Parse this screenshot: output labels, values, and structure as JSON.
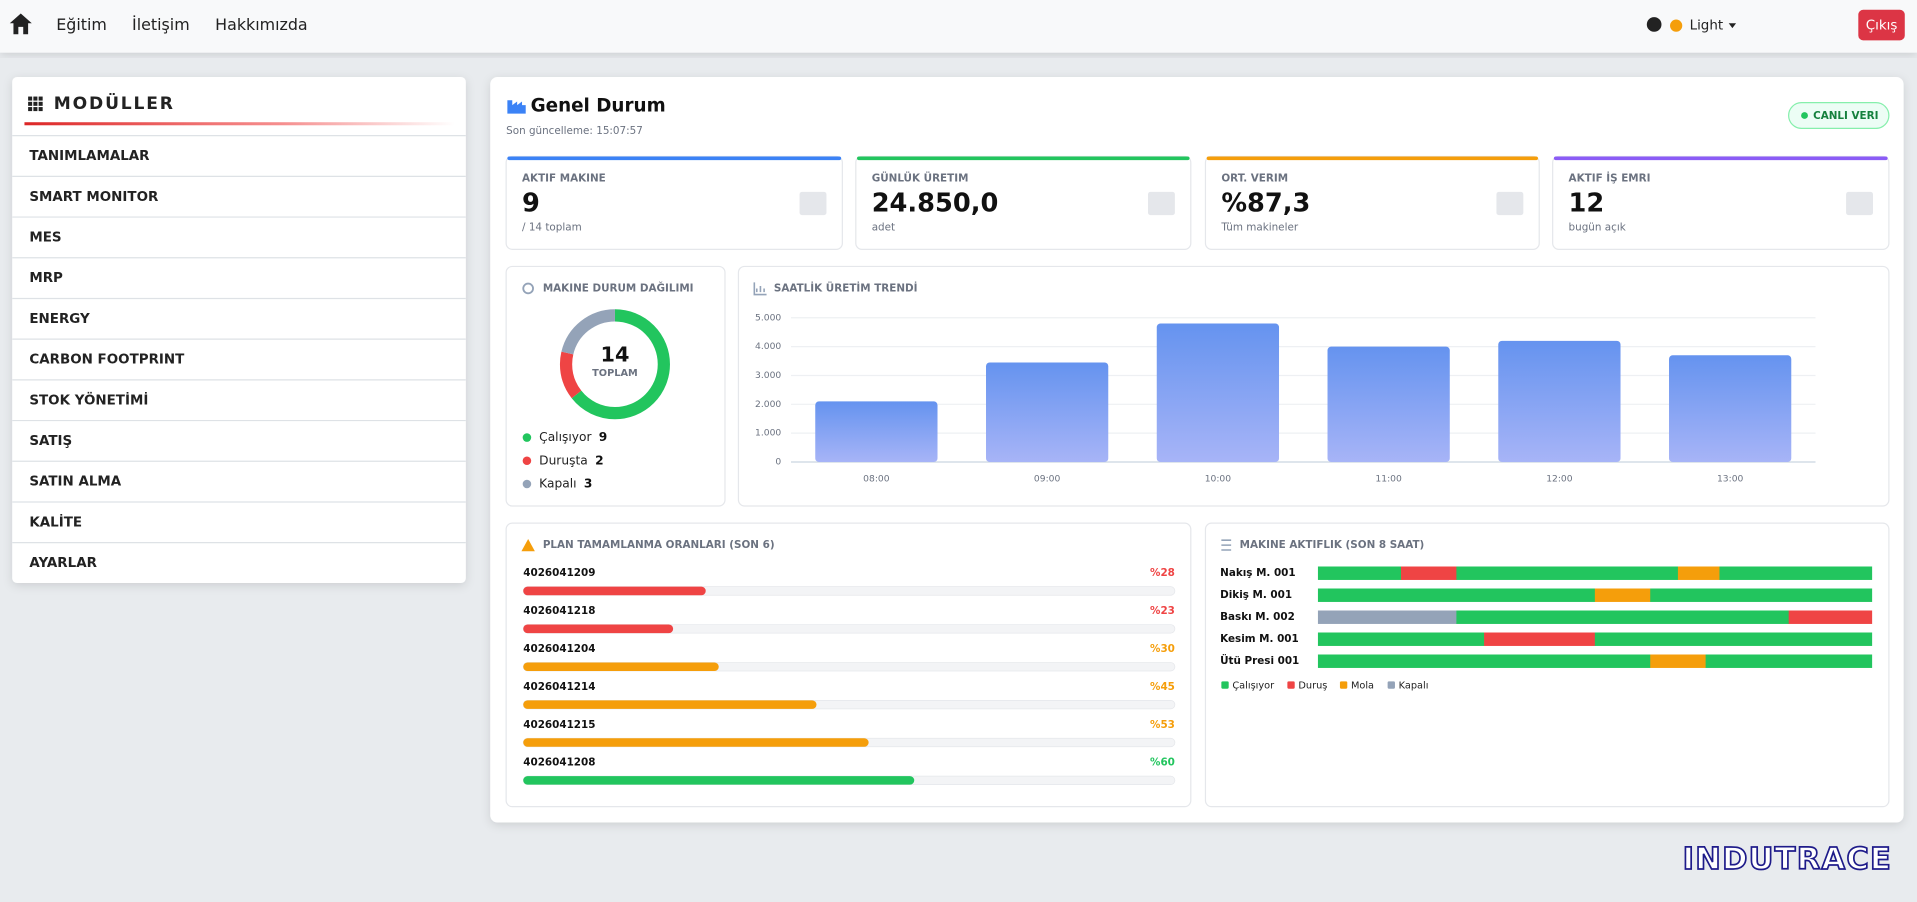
{
  "nav": {
    "links": [
      "Eğitim",
      "İletişim",
      "Hakkımızda"
    ],
    "theme": "Light",
    "logout": "Çıkış"
  },
  "sidebar": {
    "title": "MODÜLLER",
    "items": [
      "TANIMLAMALAR",
      "SMART MONITOR",
      "MES",
      "MRP",
      "ENERGY",
      "CARBON FOOTPRINT",
      "STOK YÖNETİMİ",
      "SATIŞ",
      "SATIN ALMA",
      "KALİTE",
      "AYARLAR"
    ]
  },
  "header": {
    "title": "Genel Durum",
    "updated": "Son güncelleme: 15:07:57",
    "badge": "CANLI VERI"
  },
  "kpis": [
    {
      "label": "AKTIF MAKINE",
      "value": "9",
      "sub": "/ 14 toplam",
      "color": "#3b82f6"
    },
    {
      "label": "GÜNLÜK ÜRETIM",
      "value": "24.850,0",
      "sub": "adet",
      "color": "#22c55e"
    },
    {
      "label": "ORT. VERIM",
      "value": "%87,3",
      "sub": "Tüm makineler",
      "color": "#f59e0b"
    },
    {
      "label": "AKTIF İŞ EMRI",
      "value": "12",
      "sub": "bugün açık",
      "color": "#8b5cf6"
    }
  ],
  "status_chart": {
    "type": "donut",
    "title": "MAKINE DURUM DAĞILIMI",
    "total": 14,
    "total_label": "TOPLAM",
    "series": [
      {
        "name": "Çalışıyor",
        "value": 9,
        "color": "#22c55e"
      },
      {
        "name": "Duruşta",
        "value": 2,
        "color": "#ef4444"
      },
      {
        "name": "Kapalı",
        "value": 3,
        "color": "#94a3b8"
      }
    ]
  },
  "production_chart": {
    "type": "bar",
    "title": "SAATLİK ÜRETİM TRENDİ",
    "categories": [
      "08:00",
      "09:00",
      "10:00",
      "11:00",
      "12:00",
      "13:00"
    ],
    "values": [
      2100,
      3450,
      4800,
      4000,
      4200,
      3700
    ],
    "ylim": [
      0,
      5000
    ],
    "yticks": [
      0,
      {
        "value": 1000,
        "label": "1.000"
      },
      {
        "value": 2000,
        "label": "2.000"
      },
      {
        "value": 3000,
        "label": "3.000"
      },
      {
        "value": 4000,
        "label": "4.000"
      },
      {
        "value": 5000,
        "label": "5.000"
      }
    ],
    "grid": true
  },
  "plan_chart": {
    "type": "progress",
    "title": "PLAN TAMAMLANMA ORANLARI (SON 6)",
    "xlim": [
      0,
      100
    ],
    "items": [
      {
        "name": "4026041209",
        "value": 28,
        "value_label": "%28",
        "color": "#ef4444"
      },
      {
        "name": "4026041218",
        "value": 23,
        "value_label": "%23",
        "color": "#ef4444"
      },
      {
        "name": "4026041204",
        "value": 30,
        "value_label": "%30",
        "color": "#f59e0b"
      },
      {
        "name": "4026041214",
        "value": 45,
        "value_label": "%45",
        "color": "#f59e0b"
      },
      {
        "name": "4026041215",
        "value": 53,
        "value_label": "%53",
        "color": "#f59e0b"
      },
      {
        "name": "4026041208",
        "value": 60,
        "value_label": "%60",
        "color": "#22c55e"
      }
    ]
  },
  "activity_chart": {
    "type": "timeline",
    "title": "MAKINE AKTIFLIK (SON 8 SAAT)",
    "legend": [
      {
        "name": "Çalışıyor",
        "color": "#22c55e"
      },
      {
        "name": "Duruş",
        "color": "#ef4444"
      },
      {
        "name": "Mola",
        "color": "#f59e0b"
      },
      {
        "name": "Kapalı",
        "color": "#94a3b8"
      }
    ],
    "rows": [
      {
        "name": "Nakış M. 001",
        "segments": [
          {
            "value": 1.2,
            "color": "#22c55e"
          },
          {
            "value": 0.8,
            "color": "#ef4444"
          },
          {
            "value": 3.2,
            "color": "#22c55e"
          },
          {
            "value": 0.6,
            "color": "#f59e0b"
          },
          {
            "value": 2.2,
            "color": "#22c55e"
          }
        ]
      },
      {
        "name": "Dikiş M. 001",
        "segments": [
          {
            "value": 4.0,
            "color": "#22c55e"
          },
          {
            "value": 0.8,
            "color": "#f59e0b"
          },
          {
            "value": 3.2,
            "color": "#22c55e"
          }
        ]
      },
      {
        "name": "Baskı M. 002",
        "segments": [
          {
            "value": 2.0,
            "color": "#94a3b8"
          },
          {
            "value": 4.8,
            "color": "#22c55e"
          },
          {
            "value": 1.2,
            "color": "#ef4444"
          }
        ]
      },
      {
        "name": "Kesim M. 001",
        "segments": [
          {
            "value": 2.4,
            "color": "#22c55e"
          },
          {
            "value": 1.6,
            "color": "#ef4444"
          },
          {
            "value": 4.0,
            "color": "#22c55e"
          }
        ]
      },
      {
        "name": "Ütü Presi 001",
        "segments": [
          {
            "value": 4.8,
            "color": "#22c55e"
          },
          {
            "value": 0.8,
            "color": "#f59e0b"
          },
          {
            "value": 2.4,
            "color": "#22c55e"
          }
        ]
      }
    ]
  },
  "footer": {
    "logo": "INDUTRACE"
  }
}
